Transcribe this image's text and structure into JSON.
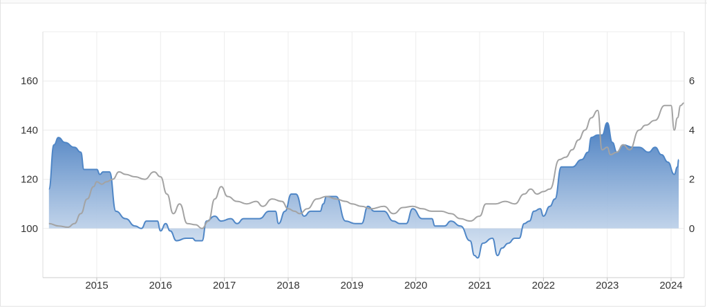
{
  "chart_data": {
    "type": "area",
    "title": "",
    "xlabel": "",
    "ylabel": "",
    "x_ticks": [
      "2015",
      "2016",
      "2017",
      "2018",
      "2019",
      "2020",
      "2021",
      "2022",
      "2023",
      "2024"
    ],
    "x_range": [
      2014.25,
      2024.2
    ],
    "y_left": {
      "range": [
        80,
        180
      ],
      "ticks": [
        "100",
        "120",
        "140",
        "160"
      ]
    },
    "y_right": {
      "range": [
        -2,
        8
      ],
      "ticks": [
        "0",
        "2",
        "4",
        "6"
      ]
    },
    "baseline": 100,
    "grid": true,
    "colors": {
      "area_line": "#4f86c6",
      "area_fill_top": "#4a7fc1",
      "area_fill_bottom": "#dbe6f3",
      "gray_line": "#a3a3a3",
      "grid": "#ececec"
    },
    "series": [
      {
        "axis": "left",
        "values": [
          [
            2014.25,
            116
          ],
          [
            2014.33,
            134
          ],
          [
            2014.4,
            137
          ],
          [
            2014.5,
            135
          ],
          [
            2014.65,
            133
          ],
          [
            2014.75,
            131
          ],
          [
            2014.8,
            124
          ],
          [
            2015.0,
            124
          ],
          [
            2015.05,
            122
          ],
          [
            2015.1,
            123
          ],
          [
            2015.2,
            123
          ],
          [
            2015.3,
            107
          ],
          [
            2015.45,
            104
          ],
          [
            2015.6,
            101
          ],
          [
            2015.7,
            100
          ],
          [
            2015.78,
            103
          ],
          [
            2015.95,
            103
          ],
          [
            2016.0,
            99
          ],
          [
            2016.08,
            102
          ],
          [
            2016.15,
            99
          ],
          [
            2016.25,
            95
          ],
          [
            2016.4,
            96
          ],
          [
            2016.5,
            96
          ],
          [
            2016.55,
            95
          ],
          [
            2016.65,
            95
          ],
          [
            2016.72,
            103
          ],
          [
            2016.85,
            105
          ],
          [
            2016.95,
            103
          ],
          [
            2017.1,
            104
          ],
          [
            2017.2,
            102
          ],
          [
            2017.3,
            104
          ],
          [
            2017.55,
            104
          ],
          [
            2017.7,
            107
          ],
          [
            2017.8,
            107
          ],
          [
            2017.85,
            102
          ],
          [
            2017.95,
            107
          ],
          [
            2018.05,
            114
          ],
          [
            2018.12,
            114
          ],
          [
            2018.25,
            105
          ],
          [
            2018.35,
            107
          ],
          [
            2018.5,
            107
          ],
          [
            2018.55,
            110
          ],
          [
            2018.6,
            113
          ],
          [
            2018.75,
            113
          ],
          [
            2018.9,
            103
          ],
          [
            2019.05,
            102
          ],
          [
            2019.15,
            102
          ],
          [
            2019.25,
            109
          ],
          [
            2019.35,
            107
          ],
          [
            2019.5,
            107
          ],
          [
            2019.65,
            103
          ],
          [
            2019.75,
            102
          ],
          [
            2019.85,
            102
          ],
          [
            2019.95,
            108
          ],
          [
            2020.1,
            104
          ],
          [
            2020.25,
            104
          ],
          [
            2020.3,
            101
          ],
          [
            2020.45,
            101
          ],
          [
            2020.55,
            103
          ],
          [
            2020.7,
            101
          ],
          [
            2020.85,
            95
          ],
          [
            2020.92,
            89
          ],
          [
            2020.97,
            88
          ],
          [
            2021.05,
            94
          ],
          [
            2021.2,
            96
          ],
          [
            2021.28,
            89
          ],
          [
            2021.35,
            92
          ],
          [
            2021.45,
            94
          ],
          [
            2021.55,
            96
          ],
          [
            2021.62,
            96
          ],
          [
            2021.7,
            102
          ],
          [
            2021.78,
            103
          ],
          [
            2021.85,
            107
          ],
          [
            2021.95,
            108
          ],
          [
            2022.0,
            105
          ],
          [
            2022.1,
            109
          ],
          [
            2022.18,
            112
          ],
          [
            2022.28,
            125
          ],
          [
            2022.45,
            125
          ],
          [
            2022.6,
            128
          ],
          [
            2022.7,
            131
          ],
          [
            2022.75,
            137
          ],
          [
            2022.85,
            138
          ],
          [
            2022.92,
            138
          ],
          [
            2023.0,
            143
          ],
          [
            2023.08,
            135
          ],
          [
            2023.15,
            131
          ],
          [
            2023.25,
            134
          ],
          [
            2023.4,
            133
          ],
          [
            2023.5,
            133
          ],
          [
            2023.65,
            131
          ],
          [
            2023.75,
            133
          ],
          [
            2023.85,
            130
          ],
          [
            2023.95,
            127
          ],
          [
            2024.05,
            122
          ],
          [
            2024.1,
            125
          ],
          [
            2024.12,
            128
          ]
        ]
      },
      {
        "axis": "right",
        "values": [
          [
            2014.25,
            0.2
          ],
          [
            2014.4,
            0.1
          ],
          [
            2014.55,
            0.05
          ],
          [
            2014.65,
            0.2
          ],
          [
            2014.75,
            0.6
          ],
          [
            2014.85,
            1.2
          ],
          [
            2014.95,
            1.7
          ],
          [
            2015.0,
            1.9
          ],
          [
            2015.08,
            1.8
          ],
          [
            2015.15,
            1.9
          ],
          [
            2015.25,
            2.0
          ],
          [
            2015.35,
            2.3
          ],
          [
            2015.45,
            2.2
          ],
          [
            2015.6,
            2.1
          ],
          [
            2015.75,
            2.0
          ],
          [
            2015.9,
            2.3
          ],
          [
            2016.0,
            2.1
          ],
          [
            2016.1,
            1.4
          ],
          [
            2016.2,
            0.6
          ],
          [
            2016.3,
            1.0
          ],
          [
            2016.42,
            0.2
          ],
          [
            2016.55,
            0.15
          ],
          [
            2016.65,
            0.0
          ],
          [
            2016.75,
            0.3
          ],
          [
            2016.85,
            1.2
          ],
          [
            2016.95,
            1.7
          ],
          [
            2017.05,
            1.3
          ],
          [
            2017.2,
            1.1
          ],
          [
            2017.35,
            1.0
          ],
          [
            2017.5,
            1.1
          ],
          [
            2017.6,
            0.9
          ],
          [
            2017.75,
            1.2
          ],
          [
            2017.9,
            1.1
          ],
          [
            2018.0,
            0.8
          ],
          [
            2018.1,
            0.7
          ],
          [
            2018.18,
            0.6
          ],
          [
            2018.3,
            0.8
          ],
          [
            2018.45,
            1.2
          ],
          [
            2018.6,
            1.3
          ],
          [
            2018.75,
            1.2
          ],
          [
            2018.9,
            1.1
          ],
          [
            2019.0,
            1.0
          ],
          [
            2019.15,
            0.9
          ],
          [
            2019.3,
            0.8
          ],
          [
            2019.5,
            0.9
          ],
          [
            2019.65,
            0.6
          ],
          [
            2019.8,
            0.85
          ],
          [
            2019.95,
            0.9
          ],
          [
            2020.1,
            0.8
          ],
          [
            2020.25,
            0.7
          ],
          [
            2020.4,
            0.7
          ],
          [
            2020.55,
            0.6
          ],
          [
            2020.7,
            0.4
          ],
          [
            2020.85,
            0.3
          ],
          [
            2021.0,
            0.5
          ],
          [
            2021.1,
            1.0
          ],
          [
            2021.25,
            1.0
          ],
          [
            2021.4,
            1.1
          ],
          [
            2021.55,
            1.0
          ],
          [
            2021.7,
            1.4
          ],
          [
            2021.8,
            1.6
          ],
          [
            2021.9,
            1.4
          ],
          [
            2022.0,
            1.5
          ],
          [
            2022.1,
            1.6
          ],
          [
            2022.25,
            2.8
          ],
          [
            2022.35,
            2.9
          ],
          [
            2022.45,
            3.2
          ],
          [
            2022.55,
            3.6
          ],
          [
            2022.65,
            4.0
          ],
          [
            2022.75,
            4.5
          ],
          [
            2022.85,
            4.8
          ],
          [
            2022.92,
            3.2
          ],
          [
            2023.0,
            3.3
          ],
          [
            2023.05,
            3.0
          ],
          [
            2023.15,
            3.1
          ],
          [
            2023.25,
            3.4
          ],
          [
            2023.35,
            3.2
          ],
          [
            2023.5,
            4.0
          ],
          [
            2023.6,
            4.2
          ],
          [
            2023.75,
            4.4
          ],
          [
            2023.9,
            5.0
          ],
          [
            2024.0,
            5.0
          ],
          [
            2024.05,
            4.0
          ],
          [
            2024.1,
            4.5
          ],
          [
            2024.15,
            5.0
          ],
          [
            2024.2,
            5.1
          ]
        ]
      }
    ]
  }
}
